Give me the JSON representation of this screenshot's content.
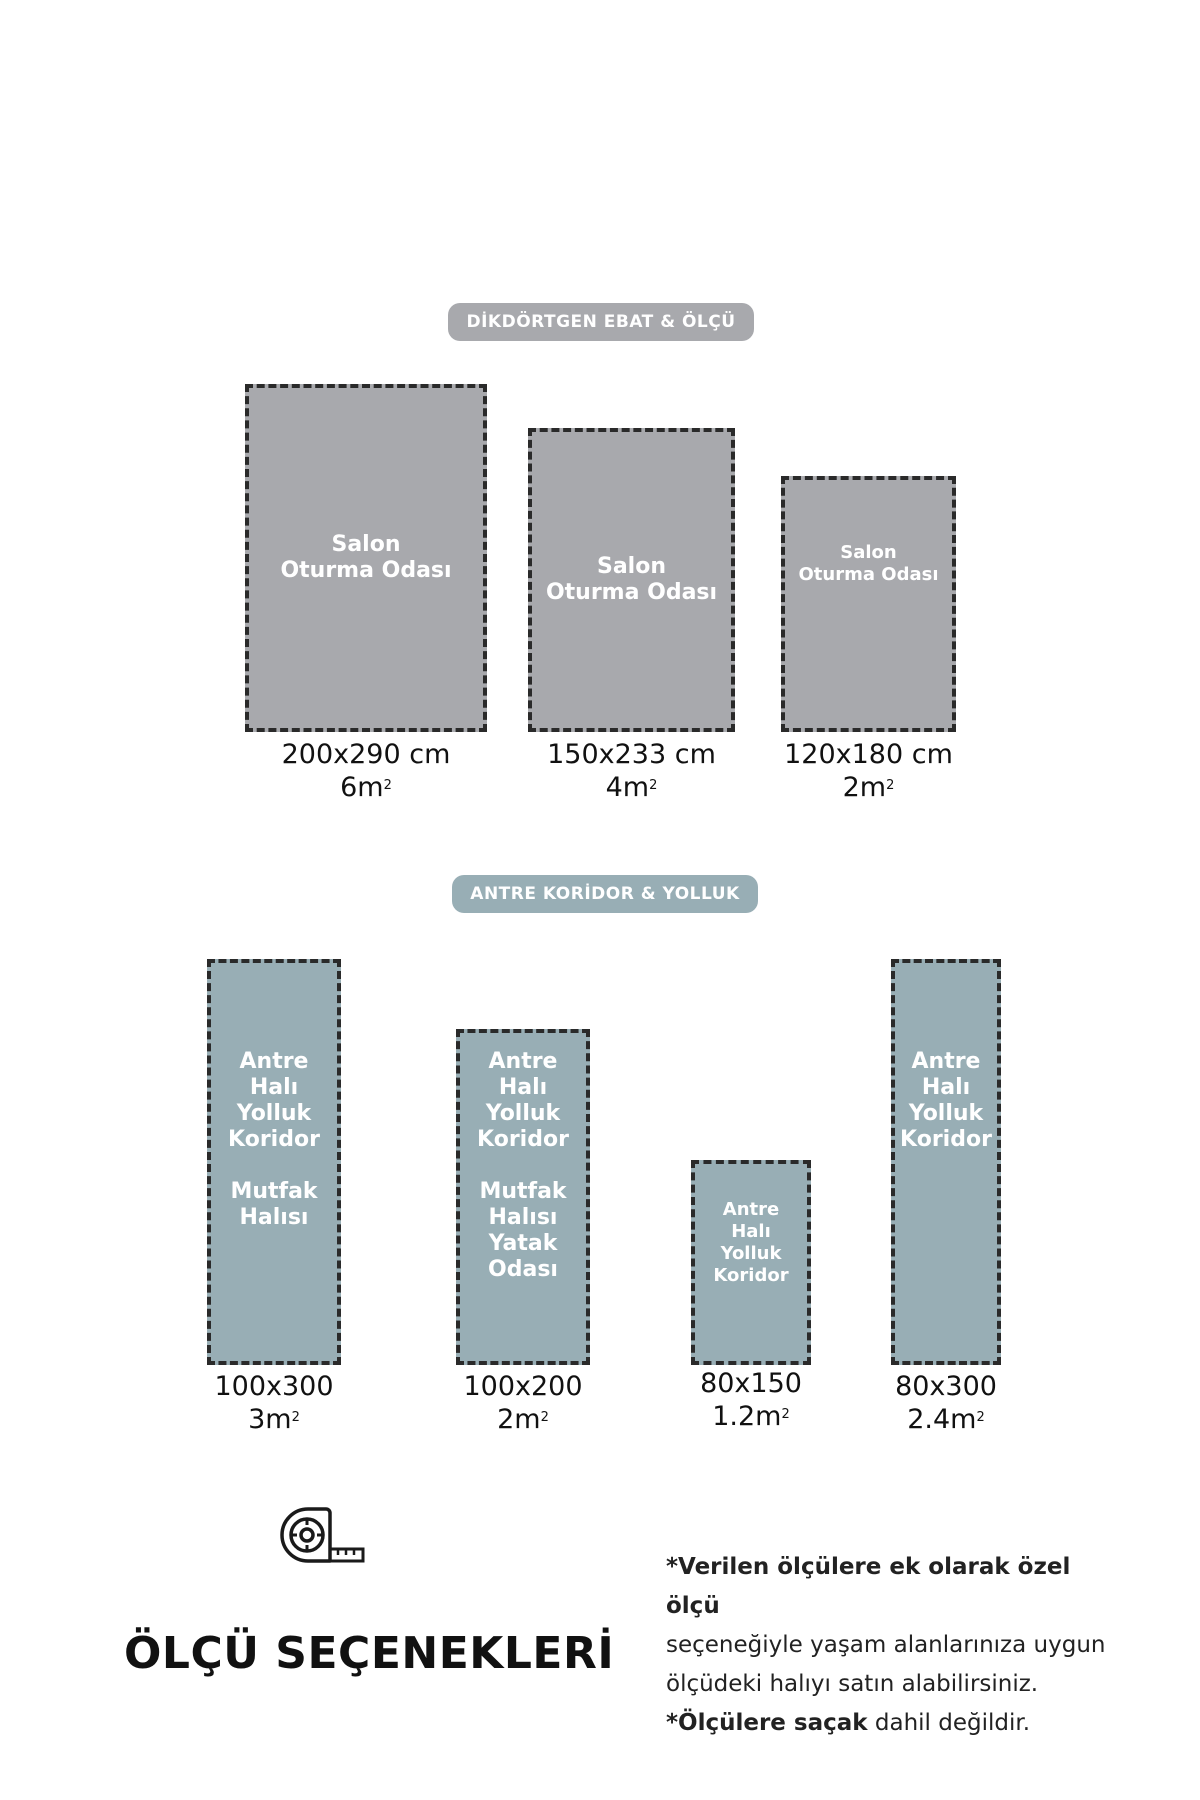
{
  "colors": {
    "rect_rug": "#a8a9ad",
    "rect_pill": "#a8a9ad",
    "corridor_rug": "#98aeb5",
    "corridor_pill": "#98aeb5",
    "dashed_border": "#2a2a2a"
  },
  "rectangular_section": {
    "label": "DİKDÖRTGEN EBAT & ÖLÇÜ",
    "rugs": [
      {
        "lines": [
          "Salon",
          "Oturma Odası"
        ],
        "size": "200x290 cm",
        "area": "6m",
        "area_unit": "2"
      },
      {
        "lines": [
          "Salon",
          "Oturma Odası"
        ],
        "size": "150x233 cm",
        "area": "4m",
        "area_unit": "2"
      },
      {
        "lines": [
          "Salon",
          "Oturma Odası"
        ],
        "size": "120x180 cm",
        "area": "2m",
        "area_unit": "2"
      }
    ]
  },
  "corridor_section": {
    "label": "ANTRE KORİDOR & YOLLUK",
    "rugs": [
      {
        "group1": [
          "Antre",
          "Halı",
          "Yolluk",
          "Koridor"
        ],
        "group2": [
          "Mutfak",
          "Halısı"
        ],
        "size": "100x300",
        "area": "3m",
        "area_unit": "2"
      },
      {
        "group1": [
          "Antre",
          "Halı",
          "Yolluk",
          "Koridor"
        ],
        "group2": [
          "Mutfak",
          "Halısı",
          "Yatak",
          "Odası"
        ],
        "size": "100x200",
        "area": "2m",
        "area_unit": "2"
      },
      {
        "group1": [
          "Antre",
          "Halı",
          "Yolluk",
          "Koridor"
        ],
        "group2": [],
        "size": "80x150",
        "area": "1.2m",
        "area_unit": "2"
      },
      {
        "group1": [
          "Antre",
          "Halı",
          "Yolluk",
          "Koridor"
        ],
        "group2": [],
        "size": "80x300",
        "area": "2.4m",
        "area_unit": "2"
      }
    ]
  },
  "footer": {
    "icon": "measuring-tape-icon",
    "title": "ÖLÇÜ SEÇENEKLERİ",
    "note_bold_1": "*Verilen ölçülere ek olarak özel ölçü",
    "note_line_2": "seçeneğiyle yaşam alanlarınıza uygun",
    "note_line_3": "ölçüdeki halıyı satın alabilirsiniz.",
    "note_bold_4": "*Ölçülere saçak",
    "note_rest_4": " dahil değildir."
  }
}
